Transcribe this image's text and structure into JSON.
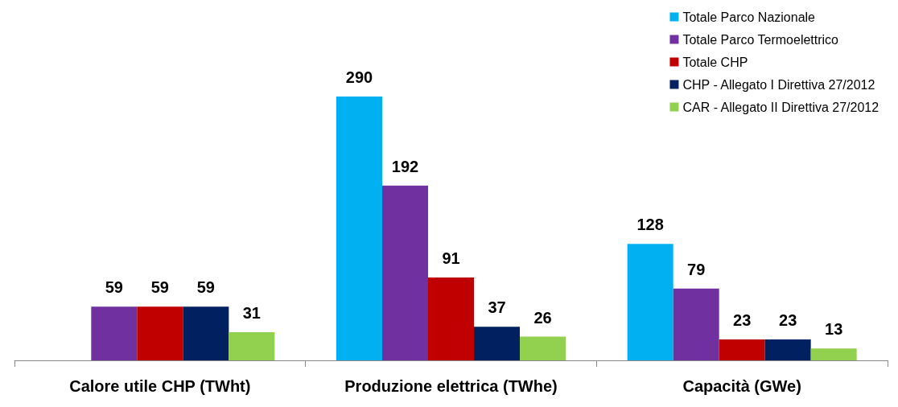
{
  "chart_data": {
    "type": "bar",
    "categories": [
      "Calore utile CHP (TWht)",
      "Produzione elettrica (TWhe)",
      "Capacità (GWe)"
    ],
    "series": [
      {
        "name": "Totale Parco Nazionale",
        "color": "#00b0f0",
        "values": [
          null,
          290,
          128
        ]
      },
      {
        "name": "Totale Parco Termoelettrico",
        "color": "#7030a0",
        "values": [
          59,
          192,
          79
        ]
      },
      {
        "name": "Totale CHP",
        "color": "#c00000",
        "values": [
          59,
          91,
          23
        ]
      },
      {
        "name": "CHP - Allegato I Direttiva 27/2012",
        "color": "#002060",
        "values": [
          59,
          37,
          23
        ]
      },
      {
        "name": "CAR - Allegato II Direttiva 27/2012",
        "color": "#92d050",
        "values": [
          31,
          26,
          13
        ]
      }
    ],
    "data_labels": true,
    "legend": "top right",
    "grid": false
  }
}
